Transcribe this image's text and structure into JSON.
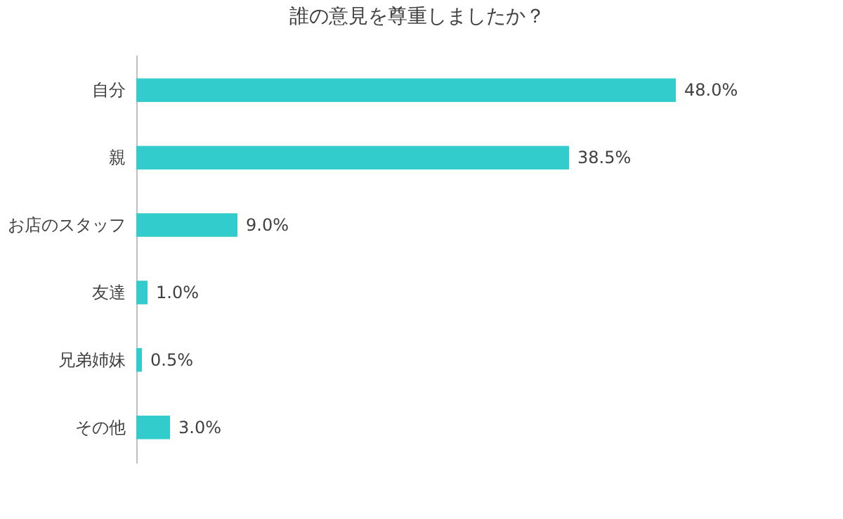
{
  "chart_data": {
    "type": "bar",
    "orientation": "horizontal",
    "title": "誰の意見を尊重しましたか？",
    "categories": [
      "自分",
      "親",
      "お店のスタッフ",
      "友達",
      "兄弟姉妹",
      "その他"
    ],
    "values": [
      48.0,
      38.5,
      9.0,
      1.0,
      0.5,
      3.0
    ],
    "value_labels": [
      "48.0%",
      "38.5%",
      "9.0%",
      "1.0%",
      "0.5%",
      "3.0%"
    ],
    "color": "#33cccc",
    "grid": false
  }
}
